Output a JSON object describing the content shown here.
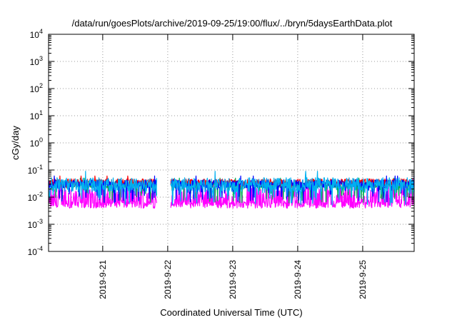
{
  "chart_data": {
    "type": "line",
    "title": "/data/run/goesPlots/archive/2019-09-25/19:00/flux/../bryn/5daysEarthData.plot",
    "xlabel": "Coordinated Universal Time (UTC)",
    "ylabel": "cGy/day",
    "y_scale": "log",
    "ylim": [
      0.0001,
      10000
    ],
    "y_ticks": [
      {
        "value": 0.0001,
        "base": "10",
        "exp": "-4"
      },
      {
        "value": 0.001,
        "base": "10",
        "exp": "-3"
      },
      {
        "value": 0.01,
        "base": "10",
        "exp": "-2"
      },
      {
        "value": 0.1,
        "base": "10",
        "exp": "-1"
      },
      {
        "value": 1,
        "base": "10",
        "exp": "0"
      },
      {
        "value": 10,
        "base": "10",
        "exp": "1"
      },
      {
        "value": 100,
        "base": "10",
        "exp": "2"
      },
      {
        "value": 1000,
        "base": "10",
        "exp": "3"
      },
      {
        "value": 10000,
        "base": "10",
        "exp": "4"
      }
    ],
    "xlim": [
      "2019-09-20 04:00",
      "2019-09-25 19:00"
    ],
    "x_ticks": [
      {
        "value": "2019-09-21 00:00",
        "label": "2019-9-21"
      },
      {
        "value": "2019-09-22 00:00",
        "label": "2019-9-22"
      },
      {
        "value": "2019-09-23 00:00",
        "label": "2019-9-23"
      },
      {
        "value": "2019-09-24 00:00",
        "label": "2019-9-24"
      },
      {
        "value": "2019-09-25 00:00",
        "label": "2019-9-25"
      }
    ],
    "grid": true,
    "legend": "none",
    "series": [
      {
        "color": "#ff0000",
        "typical_value": 0.035,
        "min_value": 0.022,
        "max_value": 0.06
      },
      {
        "color": "#00b050",
        "typical_value": 0.028,
        "min_value": 0.006,
        "max_value": 0.05
      },
      {
        "color": "#0000ff",
        "typical_value": 0.03,
        "min_value": 0.006,
        "max_value": 0.06
      },
      {
        "color": "#00b0f0",
        "typical_value": 0.027,
        "min_value": 0.005,
        "max_value": 0.09
      },
      {
        "color": "#ff00ff",
        "typical_value": 0.006,
        "min_value": 0.0035,
        "max_value": 0.03
      }
    ],
    "gaps": [
      [
        "2019-09-21 20:00",
        "2019-09-22 01:00"
      ]
    ]
  }
}
